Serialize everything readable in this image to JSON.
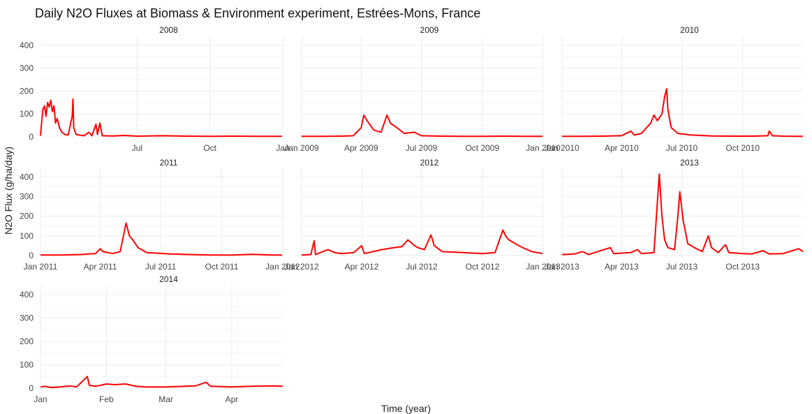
{
  "title": "Daily N2O Fluxes at Biomass & Environment experiment, Estrées-Mons, France",
  "colors": {
    "series": "#ff0000",
    "grid": "#ebebeb",
    "text": "#444444"
  },
  "chart_data": {
    "type": "line",
    "title": "Daily N2O Fluxes at Biomass & Environment experiment, Estrées-Mons, France",
    "xlabel": "Time (year)",
    "ylabel": "N2O Flux (g/ha/day)",
    "ylim": [
      0,
      430
    ],
    "yticks": [
      0,
      100,
      200,
      300,
      400
    ],
    "grid": true,
    "legend": "none",
    "panels": [
      {
        "name": "2008",
        "xlim": [
          "2008-03-01",
          "2009-01-01"
        ],
        "xticks": [
          {
            "date": "2008-07-01",
            "label": "Jul"
          },
          {
            "date": "2008-10-01",
            "label": "Oct"
          },
          {
            "date": "2009-01-01",
            "label": "Jan"
          }
        ],
        "points": [
          [
            "2008-03-01",
            5
          ],
          [
            "2008-03-02",
            45
          ],
          [
            "2008-03-04",
            120
          ],
          [
            "2008-03-06",
            135
          ],
          [
            "2008-03-08",
            90
          ],
          [
            "2008-03-10",
            150
          ],
          [
            "2008-03-12",
            130
          ],
          [
            "2008-03-14",
            160
          ],
          [
            "2008-03-16",
            110
          ],
          [
            "2008-03-18",
            135
          ],
          [
            "2008-03-20",
            60
          ],
          [
            "2008-03-22",
            80
          ],
          [
            "2008-03-25",
            40
          ],
          [
            "2008-03-28",
            20
          ],
          [
            "2008-04-01",
            10
          ],
          [
            "2008-04-05",
            8
          ],
          [
            "2008-04-10",
            90
          ],
          [
            "2008-04-11",
            165
          ],
          [
            "2008-04-12",
            40
          ],
          [
            "2008-04-15",
            10
          ],
          [
            "2008-04-25",
            5
          ],
          [
            "2008-05-01",
            20
          ],
          [
            "2008-05-05",
            5
          ],
          [
            "2008-05-10",
            55
          ],
          [
            "2008-05-12",
            10
          ],
          [
            "2008-05-15",
            60
          ],
          [
            "2008-05-18",
            5
          ],
          [
            "2008-06-01",
            4
          ],
          [
            "2008-06-15",
            6
          ],
          [
            "2008-07-01",
            3
          ],
          [
            "2008-08-01",
            5
          ],
          [
            "2008-09-01",
            3
          ],
          [
            "2008-10-01",
            2
          ],
          [
            "2008-11-01",
            3
          ],
          [
            "2008-12-01",
            2
          ],
          [
            "2008-12-31",
            2
          ]
        ]
      },
      {
        "name": "2009",
        "xlim": [
          "2009-01-01",
          "2010-01-01"
        ],
        "xticks": [
          {
            "date": "2009-01-01",
            "label": "Jan 2009"
          },
          {
            "date": "2009-04-01",
            "label": "Apr 2009"
          },
          {
            "date": "2009-07-01",
            "label": "Jul 2009"
          },
          {
            "date": "2009-10-01",
            "label": "Oct 2009"
          },
          {
            "date": "2010-01-01",
            "label": "Jan 2010"
          }
        ],
        "points": [
          [
            "2009-01-01",
            2
          ],
          [
            "2009-02-01",
            2
          ],
          [
            "2009-03-01",
            3
          ],
          [
            "2009-03-20",
            5
          ],
          [
            "2009-04-01",
            40
          ],
          [
            "2009-04-05",
            95
          ],
          [
            "2009-04-10",
            70
          ],
          [
            "2009-04-15",
            50
          ],
          [
            "2009-04-20",
            30
          ],
          [
            "2009-05-01",
            20
          ],
          [
            "2009-05-10",
            95
          ],
          [
            "2009-05-15",
            60
          ],
          [
            "2009-05-25",
            40
          ],
          [
            "2009-06-05",
            15
          ],
          [
            "2009-06-20",
            20
          ],
          [
            "2009-07-01",
            5
          ],
          [
            "2009-08-01",
            3
          ],
          [
            "2009-09-01",
            2
          ],
          [
            "2009-10-01",
            2
          ],
          [
            "2009-11-01",
            3
          ],
          [
            "2009-12-01",
            2
          ],
          [
            "2009-12-31",
            2
          ]
        ]
      },
      {
        "name": "2010",
        "xlim": [
          "2010-01-01",
          "2010-12-31"
        ],
        "xticks": [
          {
            "date": "2010-01-01",
            "label": "Jan 2010"
          },
          {
            "date": "2010-04-01",
            "label": "Apr 2010"
          },
          {
            "date": "2010-07-01",
            "label": "Jul 2010"
          },
          {
            "date": "2010-10-01",
            "label": "Oct 2010"
          }
        ],
        "points": [
          [
            "2010-01-01",
            2
          ],
          [
            "2010-02-01",
            2
          ],
          [
            "2010-03-01",
            3
          ],
          [
            "2010-04-01",
            5
          ],
          [
            "2010-04-15",
            25
          ],
          [
            "2010-04-20",
            8
          ],
          [
            "2010-05-01",
            15
          ],
          [
            "2010-05-15",
            60
          ],
          [
            "2010-05-20",
            95
          ],
          [
            "2010-05-25",
            70
          ],
          [
            "2010-06-01",
            100
          ],
          [
            "2010-06-05",
            175
          ],
          [
            "2010-06-08",
            210
          ],
          [
            "2010-06-10",
            120
          ],
          [
            "2010-06-15",
            40
          ],
          [
            "2010-06-25",
            15
          ],
          [
            "2010-07-15",
            8
          ],
          [
            "2010-08-15",
            4
          ],
          [
            "2010-09-15",
            3
          ],
          [
            "2010-10-15",
            3
          ],
          [
            "2010-11-08",
            5
          ],
          [
            "2010-11-10",
            25
          ],
          [
            "2010-11-15",
            5
          ],
          [
            "2010-12-01",
            3
          ],
          [
            "2010-12-31",
            2
          ]
        ]
      },
      {
        "name": "2011",
        "xlim": [
          "2011-01-01",
          "2012-01-01"
        ],
        "xticks": [
          {
            "date": "2011-01-01",
            "label": "Jan 2011"
          },
          {
            "date": "2011-04-01",
            "label": "Apr 2011"
          },
          {
            "date": "2011-07-01",
            "label": "Jul 2011"
          },
          {
            "date": "2011-10-01",
            "label": "Oct 2011"
          },
          {
            "date": "2012-01-01",
            "label": "Jan 2012"
          }
        ],
        "points": [
          [
            "2011-01-01",
            3
          ],
          [
            "2011-02-01",
            3
          ],
          [
            "2011-03-01",
            5
          ],
          [
            "2011-03-25",
            10
          ],
          [
            "2011-04-01",
            35
          ],
          [
            "2011-04-05",
            20
          ],
          [
            "2011-04-20",
            10
          ],
          [
            "2011-05-01",
            20
          ],
          [
            "2011-05-10",
            165
          ],
          [
            "2011-05-15",
            100
          ],
          [
            "2011-05-20",
            80
          ],
          [
            "2011-05-28",
            40
          ],
          [
            "2011-06-10",
            15
          ],
          [
            "2011-06-25",
            12
          ],
          [
            "2011-07-15",
            8
          ],
          [
            "2011-08-15",
            5
          ],
          [
            "2011-09-15",
            3
          ],
          [
            "2011-10-15",
            2
          ],
          [
            "2011-11-15",
            6
          ],
          [
            "2011-12-15",
            3
          ],
          [
            "2011-12-31",
            2
          ]
        ]
      },
      {
        "name": "2012",
        "xlim": [
          "2012-01-01",
          "2013-01-01"
        ],
        "xticks": [
          {
            "date": "2012-01-01",
            "label": "Jan 2012"
          },
          {
            "date": "2012-04-01",
            "label": "Apr 2012"
          },
          {
            "date": "2012-07-01",
            "label": "Jul 2012"
          },
          {
            "date": "2012-10-01",
            "label": "Oct 2012"
          },
          {
            "date": "2013-01-01",
            "label": "Jan 2013"
          }
        ],
        "points": [
          [
            "2012-01-01",
            3
          ],
          [
            "2012-01-15",
            5
          ],
          [
            "2012-01-20",
            75
          ],
          [
            "2012-01-22",
            5
          ],
          [
            "2012-02-10",
            30
          ],
          [
            "2012-02-20",
            15
          ],
          [
            "2012-03-01",
            10
          ],
          [
            "2012-03-20",
            15
          ],
          [
            "2012-04-01",
            50
          ],
          [
            "2012-04-05",
            10
          ],
          [
            "2012-05-01",
            30
          ],
          [
            "2012-05-20",
            40
          ],
          [
            "2012-06-01",
            45
          ],
          [
            "2012-06-10",
            80
          ],
          [
            "2012-06-20",
            50
          ],
          [
            "2012-06-25",
            40
          ],
          [
            "2012-07-05",
            30
          ],
          [
            "2012-07-15",
            105
          ],
          [
            "2012-07-20",
            50
          ],
          [
            "2012-08-01",
            20
          ],
          [
            "2012-09-01",
            15
          ],
          [
            "2012-10-01",
            10
          ],
          [
            "2012-10-20",
            15
          ],
          [
            "2012-11-01",
            130
          ],
          [
            "2012-11-05",
            100
          ],
          [
            "2012-11-10",
            80
          ],
          [
            "2012-11-20",
            60
          ],
          [
            "2012-12-01",
            40
          ],
          [
            "2012-12-15",
            20
          ],
          [
            "2012-12-31",
            10
          ]
        ]
      },
      {
        "name": "2013",
        "xlim": [
          "2013-01-01",
          "2013-12-31"
        ],
        "xticks": [
          {
            "date": "2013-01-01",
            "label": "Jan 2013"
          },
          {
            "date": "2013-04-01",
            "label": "Apr 2013"
          },
          {
            "date": "2013-07-01",
            "label": "Jul 2013"
          },
          {
            "date": "2013-10-01",
            "label": "Oct 2013"
          }
        ],
        "points": [
          [
            "2013-01-01",
            5
          ],
          [
            "2013-01-20",
            8
          ],
          [
            "2013-02-01",
            20
          ],
          [
            "2013-02-10",
            5
          ],
          [
            "2013-03-15",
            40
          ],
          [
            "2013-03-20",
            10
          ],
          [
            "2013-04-15",
            15
          ],
          [
            "2013-04-25",
            30
          ],
          [
            "2013-05-01",
            10
          ],
          [
            "2013-05-20",
            15
          ],
          [
            "2013-05-25",
            270
          ],
          [
            "2013-05-28",
            415
          ],
          [
            "2013-06-01",
            200
          ],
          [
            "2013-06-05",
            80
          ],
          [
            "2013-06-10",
            40
          ],
          [
            "2013-06-20",
            30
          ],
          [
            "2013-06-25",
            200
          ],
          [
            "2013-06-28",
            325
          ],
          [
            "2013-07-03",
            180
          ],
          [
            "2013-07-10",
            60
          ],
          [
            "2013-07-20",
            40
          ],
          [
            "2013-08-01",
            20
          ],
          [
            "2013-08-10",
            100
          ],
          [
            "2013-08-15",
            40
          ],
          [
            "2013-08-25",
            15
          ],
          [
            "2013-09-05",
            55
          ],
          [
            "2013-09-10",
            15
          ],
          [
            "2013-10-01",
            10
          ],
          [
            "2013-10-15",
            8
          ],
          [
            "2013-11-01",
            25
          ],
          [
            "2013-11-10",
            8
          ],
          [
            "2013-12-01",
            10
          ],
          [
            "2013-12-25",
            35
          ],
          [
            "2013-12-31",
            20
          ]
        ]
      },
      {
        "name": "2014",
        "xlim": [
          "2014-01-01",
          "2014-04-25"
        ],
        "xticks": [
          {
            "date": "2014-01-01",
            "label": "Jan"
          },
          {
            "date": "2014-02-01",
            "label": "Feb"
          },
          {
            "date": "2014-03-01",
            "label": "Mar"
          },
          {
            "date": "2014-04-01",
            "label": "Apr"
          }
        ],
        "points": [
          [
            "2014-01-01",
            5
          ],
          [
            "2014-01-03",
            8
          ],
          [
            "2014-01-06",
            3
          ],
          [
            "2014-01-10",
            5
          ],
          [
            "2014-01-15",
            10
          ],
          [
            "2014-01-18",
            5
          ],
          [
            "2014-01-23",
            50
          ],
          [
            "2014-01-24",
            12
          ],
          [
            "2014-01-27",
            8
          ],
          [
            "2014-02-01",
            18
          ],
          [
            "2014-02-05",
            15
          ],
          [
            "2014-02-10",
            18
          ],
          [
            "2014-02-15",
            8
          ],
          [
            "2014-02-20",
            5
          ],
          [
            "2014-03-01",
            5
          ],
          [
            "2014-03-10",
            8
          ],
          [
            "2014-03-15",
            10
          ],
          [
            "2014-03-20",
            25
          ],
          [
            "2014-03-22",
            8
          ],
          [
            "2014-04-01",
            5
          ],
          [
            "2014-04-10",
            8
          ],
          [
            "2014-04-20",
            10
          ],
          [
            "2014-04-25",
            8
          ]
        ]
      }
    ]
  }
}
